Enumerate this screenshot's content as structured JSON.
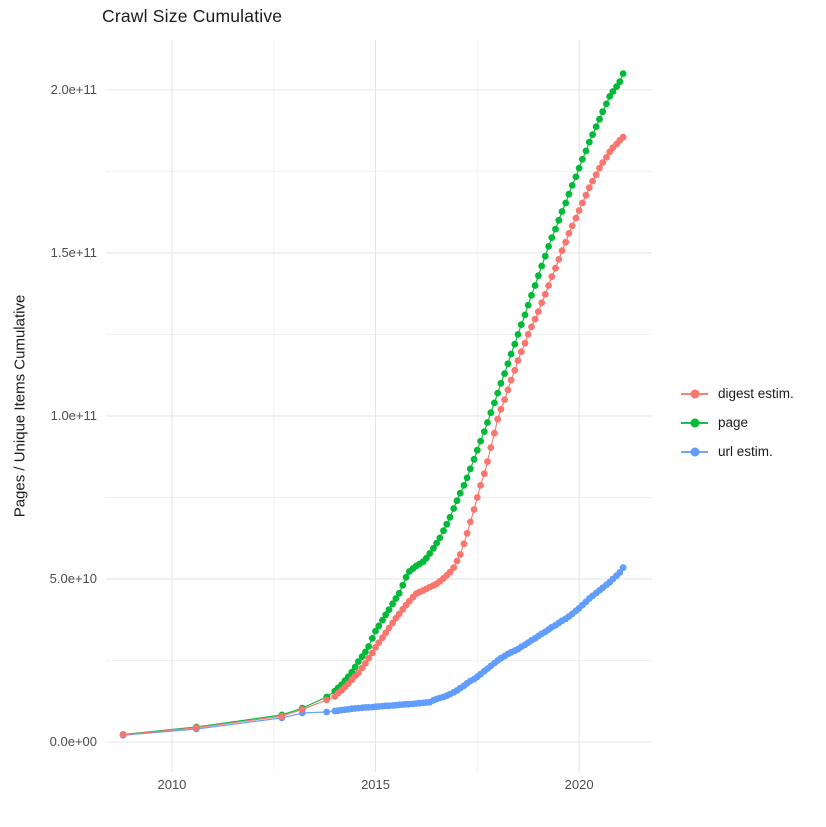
{
  "chart_data": {
    "type": "scatter",
    "title": "Crawl Size Cumulative",
    "xlabel": "",
    "ylabel": "Pages / Unique Items Cumulative",
    "legend_position": "right",
    "grid": "on",
    "background": "#ffffff",
    "grid_major_color": "#e6e6e6",
    "grid_minor_color": "#f1f1f1",
    "x_axis": {
      "range": [
        2008.38,
        2021.79
      ],
      "tick_values": [
        2010,
        2015,
        2020
      ],
      "tick_labels": [
        "2010",
        "2015",
        "2020"
      ],
      "minor_values": [
        2012.5,
        2017.5
      ]
    },
    "y_axis": {
      "range": [
        -9200000000.0,
        215300000000.0
      ],
      "tick_values": [
        0,
        50000000000.0,
        100000000000.0,
        150000000000.0,
        200000000000.0
      ],
      "tick_labels": [
        "0.0e+00",
        "5.0e+10",
        "1.0e+11",
        "1.5e+11",
        "2.0e+11"
      ],
      "minor_values": [
        25000000000.0,
        75000000000.0,
        125000000000.0,
        175000000000.0
      ]
    },
    "y_unit": 1000000000.0,
    "series": [
      {
        "name": "digest estim.",
        "color": "#F8766D",
        "points": [
          [
            2008.8,
            2.2
          ],
          [
            2010.6,
            4.4
          ],
          [
            2012.7,
            7.9
          ],
          [
            2013.2,
            10.0
          ],
          [
            2013.8,
            12.9
          ],
          [
            2014.0,
            14.0
          ],
          [
            2014.08,
            15.0
          ],
          [
            2014.17,
            15.9
          ],
          [
            2014.25,
            16.9
          ],
          [
            2014.33,
            17.9
          ],
          [
            2014.42,
            19.1
          ],
          [
            2014.5,
            20.2
          ],
          [
            2014.58,
            21.2
          ],
          [
            2014.67,
            22.7
          ],
          [
            2014.75,
            24.1
          ],
          [
            2014.83,
            25.7
          ],
          [
            2014.92,
            27.3
          ],
          [
            2015.0,
            29.0
          ],
          [
            2015.08,
            30.5
          ],
          [
            2015.17,
            32.0
          ],
          [
            2015.25,
            33.5
          ],
          [
            2015.33,
            35.0
          ],
          [
            2015.42,
            36.5
          ],
          [
            2015.5,
            38.0
          ],
          [
            2015.58,
            39.3
          ],
          [
            2015.67,
            40.7
          ],
          [
            2015.75,
            42.0
          ],
          [
            2015.83,
            43.2
          ],
          [
            2015.92,
            44.4
          ],
          [
            2016.0,
            45.5
          ],
          [
            2016.08,
            46.0
          ],
          [
            2016.17,
            46.5
          ],
          [
            2016.25,
            47.0
          ],
          [
            2016.33,
            47.5
          ],
          [
            2016.42,
            48.0
          ],
          [
            2016.5,
            48.5
          ],
          [
            2016.58,
            49.3
          ],
          [
            2016.67,
            50.2
          ],
          [
            2016.75,
            51.1
          ],
          [
            2016.83,
            52.1
          ],
          [
            2016.92,
            53.5
          ],
          [
            2017.0,
            55.5
          ],
          [
            2017.08,
            57.5
          ],
          [
            2017.17,
            60.8
          ],
          [
            2017.25,
            64.0
          ],
          [
            2017.33,
            67.5
          ],
          [
            2017.42,
            71.3
          ],
          [
            2017.5,
            75.0
          ],
          [
            2017.58,
            78.7
          ],
          [
            2017.67,
            82.3
          ],
          [
            2017.75,
            86.0
          ],
          [
            2017.83,
            90.3
          ],
          [
            2017.92,
            94.7
          ],
          [
            2018.0,
            99.0
          ],
          [
            2018.08,
            102.0
          ],
          [
            2018.17,
            105.0
          ],
          [
            2018.25,
            108.0
          ],
          [
            2018.33,
            111.0
          ],
          [
            2018.42,
            114.0
          ],
          [
            2018.5,
            117.0
          ],
          [
            2018.58,
            119.7
          ],
          [
            2018.67,
            122.3
          ],
          [
            2018.75,
            125.0
          ],
          [
            2018.83,
            127.3
          ],
          [
            2018.92,
            129.7
          ],
          [
            2019.0,
            132.0
          ],
          [
            2019.08,
            134.7
          ],
          [
            2019.17,
            137.3
          ],
          [
            2019.25,
            140.0
          ],
          [
            2019.33,
            142.7
          ],
          [
            2019.42,
            145.3
          ],
          [
            2019.5,
            148.0
          ],
          [
            2019.58,
            150.7
          ],
          [
            2019.67,
            153.3
          ],
          [
            2019.75,
            156.0
          ],
          [
            2019.83,
            158.3
          ],
          [
            2019.92,
            160.7
          ],
          [
            2020.0,
            163.0
          ],
          [
            2020.08,
            165.3
          ],
          [
            2020.17,
            167.7
          ],
          [
            2020.25,
            170.0
          ],
          [
            2020.33,
            172.0
          ],
          [
            2020.42,
            174.0
          ],
          [
            2020.5,
            176.0
          ],
          [
            2020.58,
            177.7
          ],
          [
            2020.67,
            179.3
          ],
          [
            2020.75,
            181.0
          ],
          [
            2020.83,
            182.3
          ],
          [
            2020.92,
            183.4
          ],
          [
            2021.0,
            184.5
          ],
          [
            2021.08,
            185.5
          ]
        ]
      },
      {
        "name": "page",
        "color": "#00BA38",
        "points": [
          [
            2008.8,
            2.3
          ],
          [
            2010.6,
            4.6
          ],
          [
            2012.7,
            8.3
          ],
          [
            2013.2,
            10.4
          ],
          [
            2013.8,
            13.8
          ],
          [
            2014.0,
            15.6
          ],
          [
            2014.08,
            16.6
          ],
          [
            2014.17,
            17.6
          ],
          [
            2014.25,
            18.8
          ],
          [
            2014.33,
            20.0
          ],
          [
            2014.42,
            21.4
          ],
          [
            2014.5,
            23.0
          ],
          [
            2014.58,
            24.7
          ],
          [
            2014.67,
            26.2
          ],
          [
            2014.75,
            27.6
          ],
          [
            2014.83,
            29.3
          ],
          [
            2014.92,
            31.8
          ],
          [
            2015.0,
            34.0
          ],
          [
            2015.08,
            35.6
          ],
          [
            2015.17,
            37.4
          ],
          [
            2015.25,
            39.0
          ],
          [
            2015.33,
            40.6
          ],
          [
            2015.42,
            42.4
          ],
          [
            2015.5,
            44.0
          ],
          [
            2015.58,
            45.6
          ],
          [
            2015.67,
            48.1
          ],
          [
            2015.75,
            50.5
          ],
          [
            2015.83,
            52.3
          ],
          [
            2015.92,
            53.2
          ],
          [
            2016.0,
            54.0
          ],
          [
            2016.08,
            54.6
          ],
          [
            2016.17,
            55.3
          ],
          [
            2016.25,
            56.4
          ],
          [
            2016.33,
            57.8
          ],
          [
            2016.42,
            59.4
          ],
          [
            2016.5,
            61.0
          ],
          [
            2016.58,
            62.6
          ],
          [
            2016.67,
            64.8
          ],
          [
            2016.75,
            66.8
          ],
          [
            2016.83,
            68.9
          ],
          [
            2016.92,
            71.6
          ],
          [
            2017.0,
            74.0
          ],
          [
            2017.08,
            76.3
          ],
          [
            2017.17,
            78.7
          ],
          [
            2017.25,
            81.0
          ],
          [
            2017.33,
            83.8
          ],
          [
            2017.42,
            86.7
          ],
          [
            2017.5,
            89.5
          ],
          [
            2017.58,
            92.3
          ],
          [
            2017.67,
            95.2
          ],
          [
            2017.75,
            98.0
          ],
          [
            2017.83,
            101.0
          ],
          [
            2017.92,
            104.0
          ],
          [
            2018.0,
            107.0
          ],
          [
            2018.08,
            110.0
          ],
          [
            2018.17,
            113.0
          ],
          [
            2018.25,
            116.0
          ],
          [
            2018.33,
            119.0
          ],
          [
            2018.42,
            122.0
          ],
          [
            2018.5,
            125.0
          ],
          [
            2018.58,
            128.0
          ],
          [
            2018.67,
            131.0
          ],
          [
            2018.75,
            134.0
          ],
          [
            2018.83,
            137.0
          ],
          [
            2018.92,
            140.0
          ],
          [
            2019.0,
            143.0
          ],
          [
            2019.08,
            146.0
          ],
          [
            2019.17,
            149.0
          ],
          [
            2019.25,
            152.0
          ],
          [
            2019.33,
            154.7
          ],
          [
            2019.42,
            157.3
          ],
          [
            2019.5,
            160.0
          ],
          [
            2019.58,
            162.7
          ],
          [
            2019.67,
            165.3
          ],
          [
            2019.75,
            168.0
          ],
          [
            2019.83,
            170.7
          ],
          [
            2019.92,
            173.3
          ],
          [
            2020.0,
            176.0
          ],
          [
            2020.08,
            178.7
          ],
          [
            2020.17,
            181.3
          ],
          [
            2020.25,
            184.0
          ],
          [
            2020.33,
            186.3
          ],
          [
            2020.42,
            188.7
          ],
          [
            2020.5,
            191.0
          ],
          [
            2020.58,
            193.3
          ],
          [
            2020.67,
            195.7
          ],
          [
            2020.75,
            198.0
          ],
          [
            2020.83,
            199.5
          ],
          [
            2020.92,
            201.0
          ],
          [
            2021.0,
            202.5
          ],
          [
            2021.08,
            205.0
          ]
        ]
      },
      {
        "name": "url estim.",
        "color": "#619CFF",
        "points": [
          [
            2008.8,
            2.1
          ],
          [
            2010.6,
            4.0
          ],
          [
            2012.7,
            7.4
          ],
          [
            2013.2,
            8.9
          ],
          [
            2013.8,
            9.2
          ],
          [
            2014.0,
            9.5
          ],
          [
            2014.08,
            9.6
          ],
          [
            2014.17,
            9.8
          ],
          [
            2014.25,
            9.9
          ],
          [
            2014.33,
            10.0
          ],
          [
            2014.42,
            10.2
          ],
          [
            2014.5,
            10.3
          ],
          [
            2014.58,
            10.4
          ],
          [
            2014.67,
            10.5
          ],
          [
            2014.75,
            10.6
          ],
          [
            2014.83,
            10.6
          ],
          [
            2014.92,
            10.7
          ],
          [
            2015.0,
            10.8
          ],
          [
            2015.08,
            10.9
          ],
          [
            2015.17,
            11.0
          ],
          [
            2015.25,
            11.1
          ],
          [
            2015.33,
            11.1
          ],
          [
            2015.42,
            11.2
          ],
          [
            2015.5,
            11.3
          ],
          [
            2015.58,
            11.4
          ],
          [
            2015.67,
            11.5
          ],
          [
            2015.75,
            11.6
          ],
          [
            2015.83,
            11.6
          ],
          [
            2015.92,
            11.7
          ],
          [
            2016.0,
            11.8
          ],
          [
            2016.08,
            11.9
          ],
          [
            2016.17,
            12.0
          ],
          [
            2016.25,
            12.1
          ],
          [
            2016.33,
            12.2
          ],
          [
            2016.42,
            12.8
          ],
          [
            2016.5,
            13.2
          ],
          [
            2016.58,
            13.5
          ],
          [
            2016.67,
            13.8
          ],
          [
            2016.75,
            14.2
          ],
          [
            2016.83,
            14.7
          ],
          [
            2016.92,
            15.2
          ],
          [
            2017.0,
            15.8
          ],
          [
            2017.08,
            16.5
          ],
          [
            2017.17,
            17.2
          ],
          [
            2017.25,
            18.0
          ],
          [
            2017.33,
            18.7
          ],
          [
            2017.42,
            19.3
          ],
          [
            2017.5,
            20.0
          ],
          [
            2017.58,
            20.8
          ],
          [
            2017.67,
            21.7
          ],
          [
            2017.75,
            22.5
          ],
          [
            2017.83,
            23.3
          ],
          [
            2017.92,
            24.2
          ],
          [
            2018.0,
            25.0
          ],
          [
            2018.08,
            25.7
          ],
          [
            2018.17,
            26.3
          ],
          [
            2018.25,
            27.0
          ],
          [
            2018.33,
            27.5
          ],
          [
            2018.42,
            28.0
          ],
          [
            2018.5,
            28.5
          ],
          [
            2018.58,
            29.2
          ],
          [
            2018.67,
            29.8
          ],
          [
            2018.75,
            30.5
          ],
          [
            2018.83,
            31.2
          ],
          [
            2018.92,
            31.8
          ],
          [
            2019.0,
            32.5
          ],
          [
            2019.08,
            33.2
          ],
          [
            2019.17,
            33.8
          ],
          [
            2019.25,
            34.5
          ],
          [
            2019.33,
            35.2
          ],
          [
            2019.42,
            35.8
          ],
          [
            2019.5,
            36.5
          ],
          [
            2019.58,
            37.2
          ],
          [
            2019.67,
            37.8
          ],
          [
            2019.75,
            38.5
          ],
          [
            2019.83,
            39.3
          ],
          [
            2019.92,
            40.2
          ],
          [
            2020.0,
            41.0
          ],
          [
            2020.08,
            42.0
          ],
          [
            2020.17,
            43.0
          ],
          [
            2020.25,
            44.0
          ],
          [
            2020.33,
            44.8
          ],
          [
            2020.42,
            45.7
          ],
          [
            2020.5,
            46.5
          ],
          [
            2020.58,
            47.3
          ],
          [
            2020.67,
            48.2
          ],
          [
            2020.75,
            49.0
          ],
          [
            2020.83,
            50.0
          ],
          [
            2020.92,
            51.0
          ],
          [
            2021.0,
            52.0
          ],
          [
            2021.08,
            53.5
          ]
        ]
      }
    ]
  }
}
